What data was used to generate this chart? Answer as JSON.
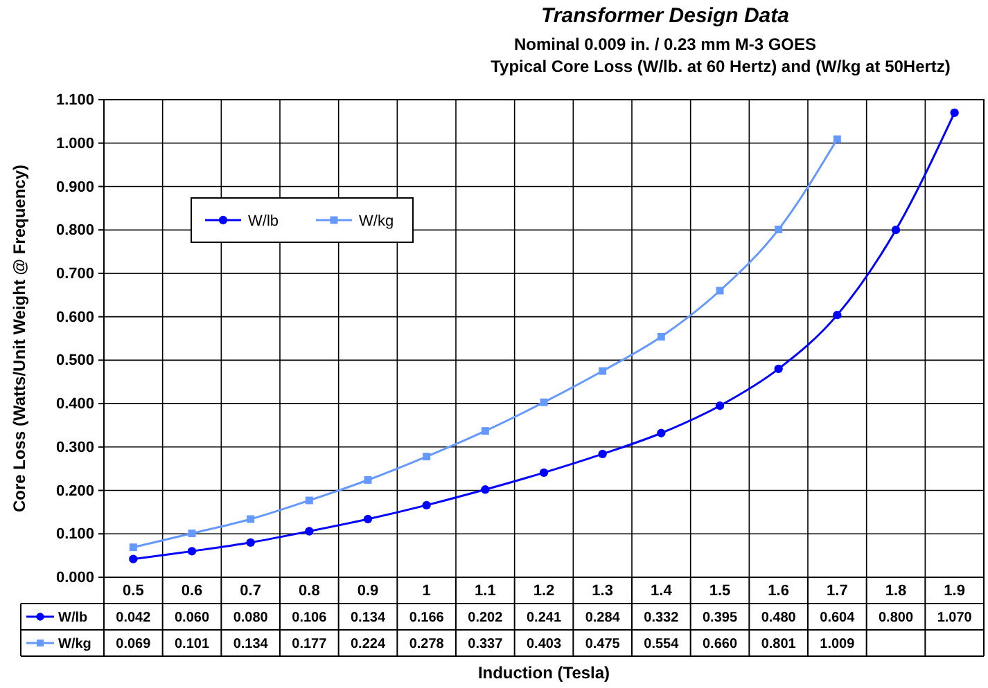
{
  "chart_data": {
    "type": "line",
    "title": "Transformer Design Data",
    "subtitle": "Nominal 0.009 in. / 0.23 mm M-3 GOES\nTypical Core Loss (W/lb. at 60 Hertz) and (W/kg at 50Hertz)",
    "xlabel": "Induction (Tesla)",
    "ylabel": "Core Loss (Watts/Unit Weight @ Frequency)",
    "categories": [
      "0.5",
      "0.6",
      "0.7",
      "0.8",
      "0.9",
      "1",
      "1.1",
      "1.2",
      "1.3",
      "1.4",
      "1.5",
      "1.6",
      "1.7",
      "1.8",
      "1.9"
    ],
    "series": [
      {
        "name": "W/lb",
        "color": "#0000ff",
        "marker": "circle",
        "values": [
          0.042,
          0.06,
          0.08,
          0.106,
          0.134,
          0.166,
          0.202,
          0.241,
          0.284,
          0.332,
          0.395,
          0.48,
          0.604,
          0.8,
          1.07
        ],
        "value_labels": [
          "0.042",
          "0.060",
          "0.080",
          "0.106",
          "0.134",
          "0.166",
          "0.202",
          "0.241",
          "0.284",
          "0.332",
          "0.395",
          "0.480",
          "0.604",
          "0.800",
          "1.070"
        ]
      },
      {
        "name": "W/kg",
        "color": "#6699ff",
        "marker": "square",
        "values": [
          0.069,
          0.101,
          0.134,
          0.177,
          0.224,
          0.278,
          0.337,
          0.403,
          0.475,
          0.554,
          0.66,
          0.801,
          1.009,
          null,
          null
        ],
        "value_labels": [
          "0.069",
          "0.101",
          "0.134",
          "0.177",
          "0.224",
          "0.278",
          "0.337",
          "0.403",
          "0.475",
          "0.554",
          "0.660",
          "0.801",
          "1.009",
          null,
          null
        ]
      }
    ],
    "ylim": [
      0,
      1.1
    ],
    "yticks": [
      {
        "value": 0,
        "label": "0.000"
      },
      {
        "value": 0.1,
        "label": "0.100"
      },
      {
        "value": 0.2,
        "label": "0.200"
      },
      {
        "value": 0.3,
        "label": "0.300"
      },
      {
        "value": 0.4,
        "label": "0.400"
      },
      {
        "value": 0.5,
        "label": "0.500"
      },
      {
        "value": 0.6,
        "label": "0.600"
      },
      {
        "value": 0.7,
        "label": "0.700"
      },
      {
        "value": 0.8,
        "label": "0.800"
      },
      {
        "value": 0.9,
        "label": "0.900"
      },
      {
        "value": 1.0,
        "label": "1.000"
      },
      {
        "value": 1.1,
        "label": "1.100"
      }
    ],
    "grid": true,
    "legend": "top left",
    "line_style": "solid"
  }
}
